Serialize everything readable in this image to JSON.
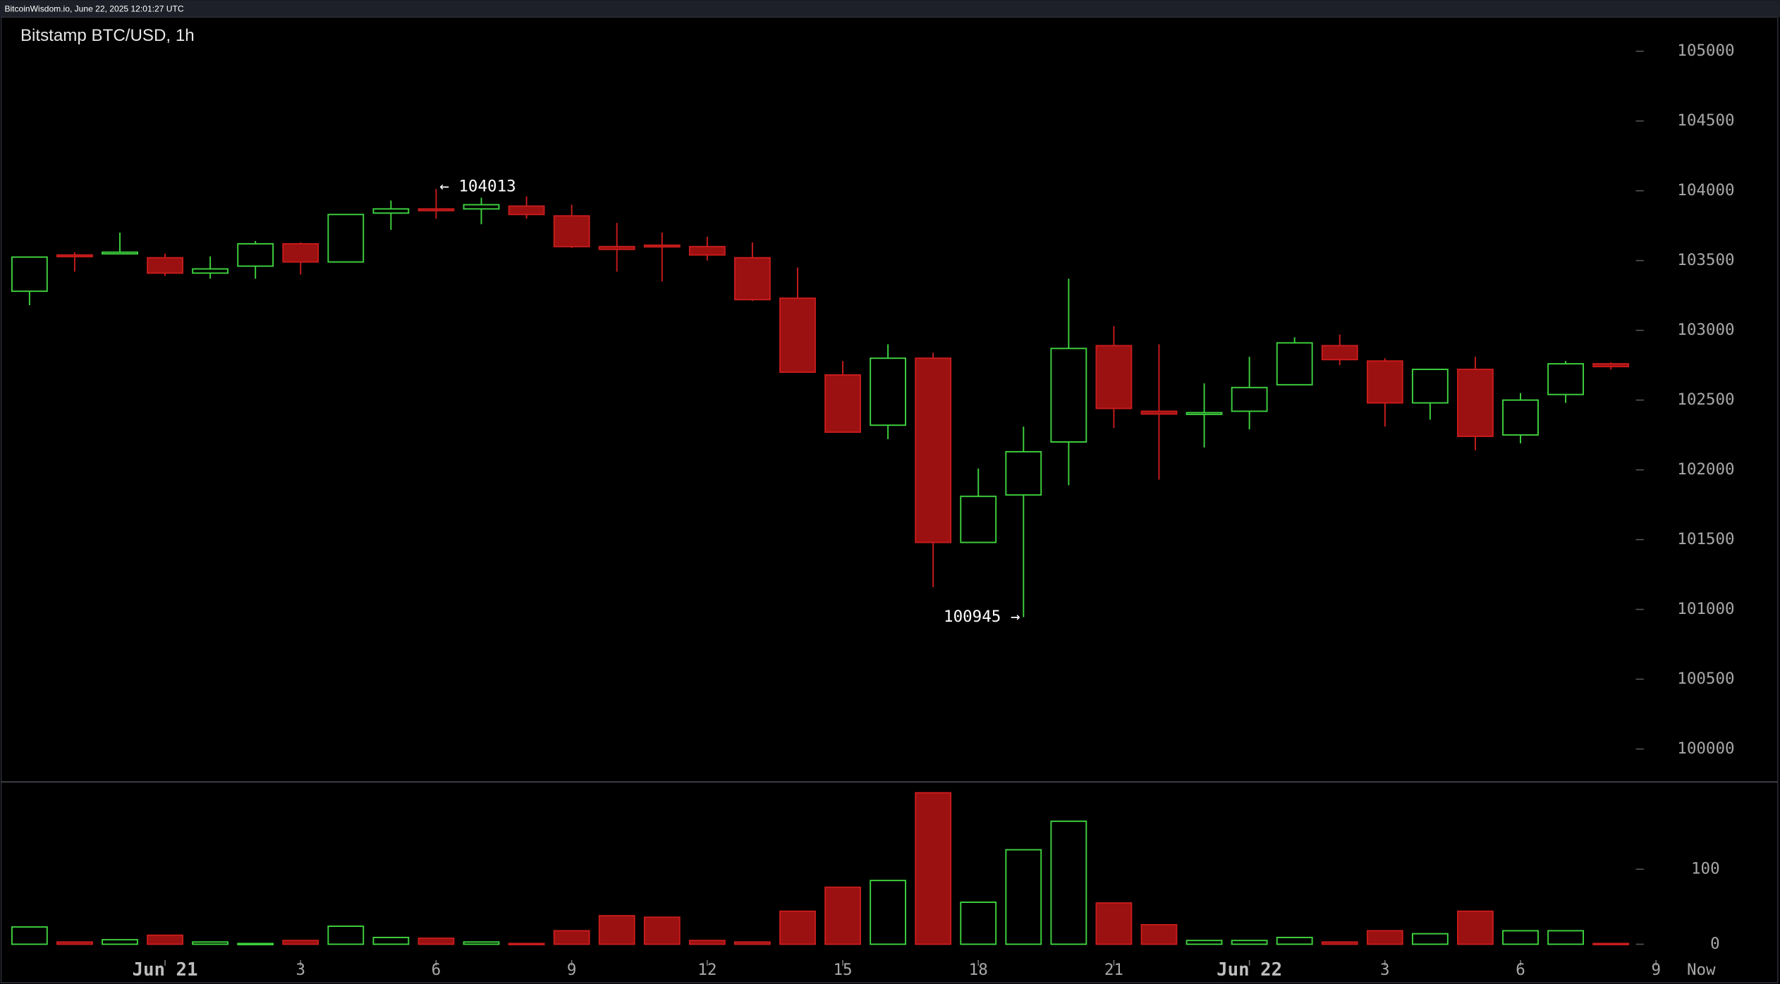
{
  "source": "BitcoinWisdom.io, June 22, 2025 12:01:27 UTC",
  "chart_data": {
    "type": "candlestick",
    "title": "Bitstamp BTC/USD, 1h",
    "categories": [
      null,
      null,
      null,
      "Jun 21",
      null,
      null,
      "3",
      null,
      null,
      "6",
      null,
      null,
      "9",
      null,
      null,
      "12",
      null,
      null,
      "15",
      null,
      null,
      "18",
      null,
      null,
      "21",
      null,
      null,
      "Jun 22",
      null,
      null,
      "3",
      null,
      null,
      "6",
      null,
      null,
      "9",
      "Now"
    ],
    "open": [
      103280,
      103540,
      103550,
      103520,
      103410,
      103460,
      103620,
      103490,
      103840,
      103870,
      103870,
      103890,
      103820,
      103600,
      103610,
      103600,
      103520,
      103230,
      102680,
      102320,
      102800,
      101480,
      101820,
      102200,
      102890,
      102420,
      102400,
      102420,
      102610,
      102890,
      102780,
      102480,
      102720,
      102250,
      102540,
      102760,
      null,
      null
    ],
    "high": [
      103525,
      103560,
      103700,
      103550,
      103530,
      103640,
      103630,
      103830,
      103930,
      104013,
      103950,
      103960,
      103900,
      103770,
      103700,
      103670,
      103630,
      103450,
      102780,
      102900,
      102840,
      102010,
      102310,
      103370,
      103030,
      102900,
      102620,
      102810,
      102950,
      102970,
      102800,
      102720,
      102810,
      102550,
      102780,
      102770,
      null,
      null
    ],
    "low": [
      103180,
      103420,
      103550,
      103390,
      103370,
      103370,
      103400,
      103490,
      103720,
      103800,
      103760,
      103800,
      103590,
      103420,
      103350,
      103500,
      103210,
      102700,
      102270,
      102220,
      101160,
      101480,
      100945,
      101890,
      102300,
      101930,
      102160,
      102290,
      102610,
      102750,
      102310,
      102360,
      102140,
      102190,
      102480,
      102720,
      null,
      null
    ],
    "close": [
      103525,
      103530,
      103560,
      103410,
      103440,
      103620,
      103490,
      103830,
      103870,
      103860,
      103900,
      103830,
      103600,
      103580,
      103600,
      103540,
      103220,
      102700,
      102270,
      102800,
      101480,
      101810,
      102130,
      102870,
      102440,
      102400,
      102410,
      102590,
      102910,
      102790,
      102480,
      102720,
      102240,
      102500,
      102760,
      102740,
      null,
      null
    ],
    "volume": [
      23,
      3,
      6,
      12,
      3,
      1,
      5,
      24,
      9,
      8,
      3,
      1,
      18,
      38,
      36,
      5,
      3,
      44,
      76,
      85,
      202,
      56,
      126,
      164,
      55,
      26,
      5,
      5,
      9,
      3,
      18,
      14,
      44,
      18,
      18,
      1,
      null,
      null
    ],
    "up_color": "#3ed13e",
    "down_color": "#c81c1c",
    "ylim": [
      99772,
      105236
    ],
    "yticks": [
      105000,
      104500,
      104000,
      103500,
      103000,
      102500,
      102000,
      101500,
      101000,
      100500,
      100000
    ],
    "volume_ylim": [
      -12,
      215
    ],
    "volume_yticks": [
      100,
      0
    ],
    "annotations": [
      {
        "label": "← 104013"
      },
      {
        "label": "100945 →"
      }
    ]
  }
}
